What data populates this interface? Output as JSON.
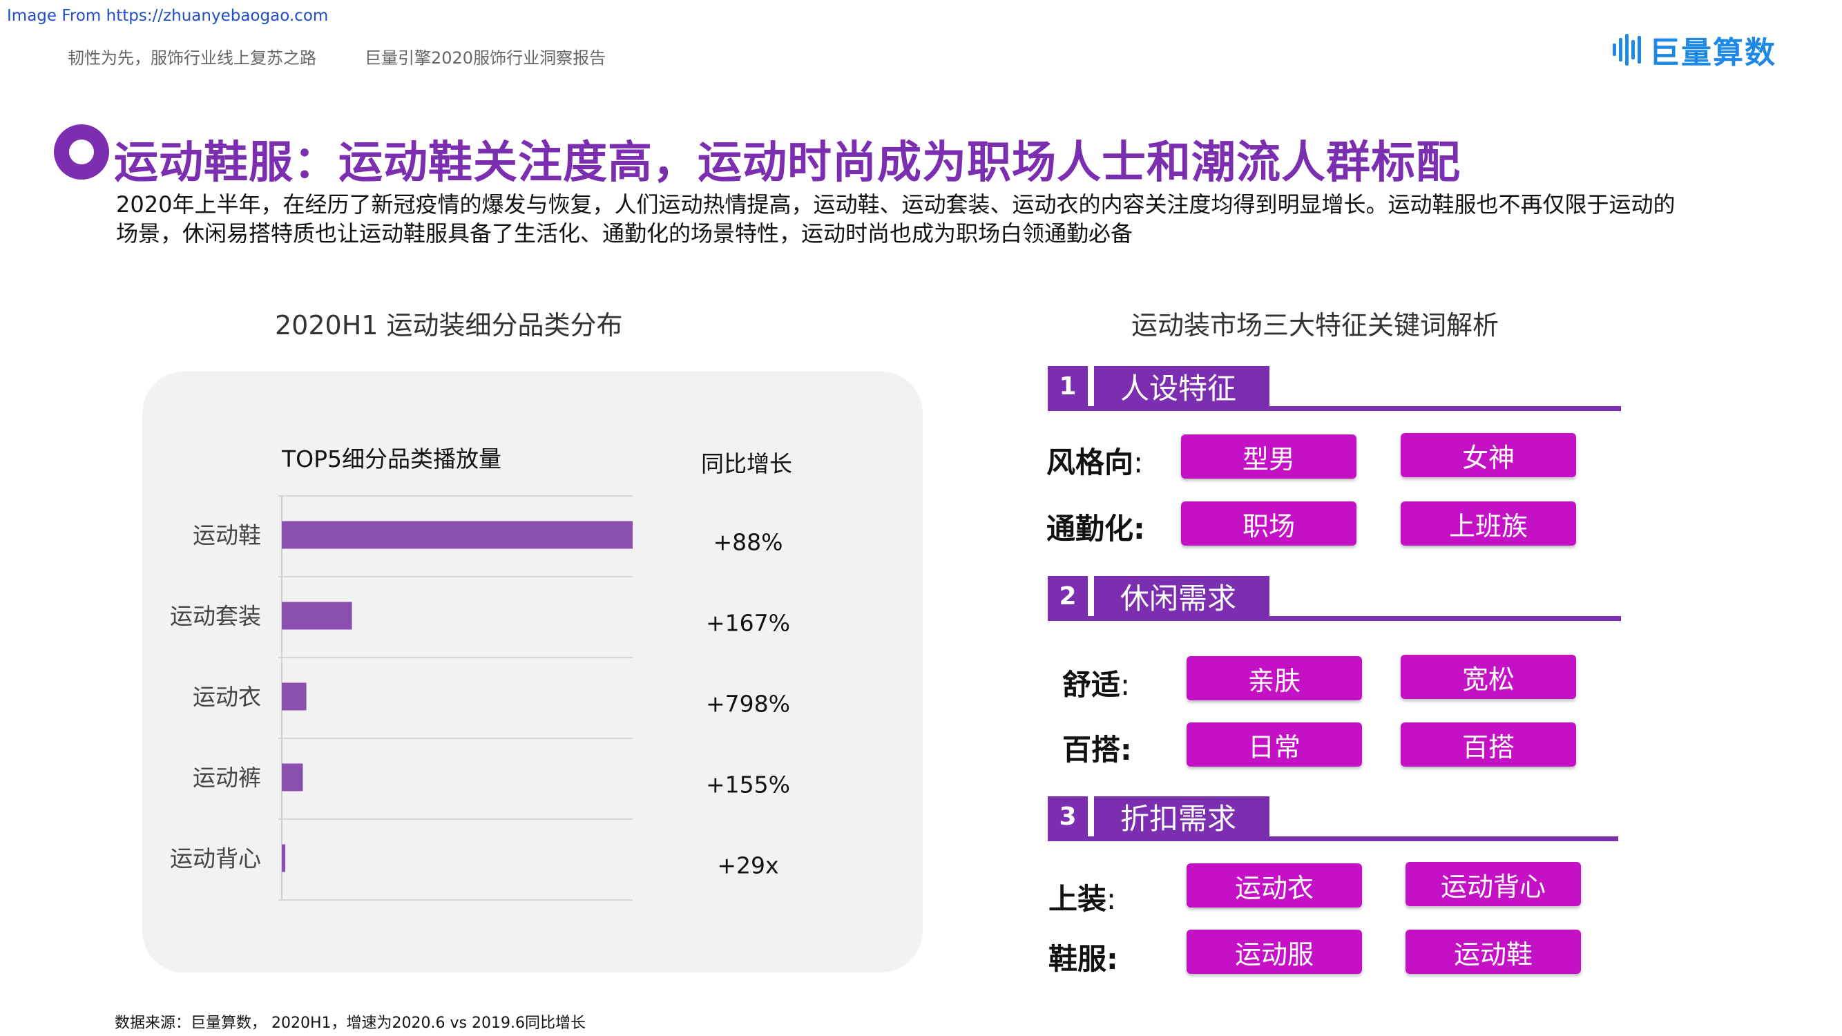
{
  "header": {
    "source_link": "Image From https://zhuanyebaogao.com",
    "subtitle_left": "韧性为先，服饰行业线上复苏之路",
    "subtitle_right": "巨量引擎2020服饰行业洞察报告",
    "logo_text": "巨量算数"
  },
  "slide": {
    "title": "运动鞋服：运动鞋关注度高，运动时尚成为职场人士和潮流人群标配",
    "description": "2020年上半年，在经历了新冠疫情的爆发与恢复，人们运动热情提高，运动鞋、运动套装、运动衣的内容关注度均得到明显增长。运动鞋服也不再仅限于运动的场景，休闲易搭特质也让运动鞋服具备了生活化、通勤化的场景特性，运动时尚也成为职场白领通勤必备"
  },
  "chart_data": {
    "type": "bar",
    "title": "2020H1 运动装细分品类分布",
    "xlabel": "TOP5细分品类播放量",
    "yoy_header": "同比增长",
    "categories": [
      "运动鞋",
      "运动套装",
      "运动衣",
      "运动裤",
      "运动背心"
    ],
    "values": [
      100,
      20,
      7,
      6,
      1
    ],
    "yoy": [
      "+88%",
      "+167%",
      "+798%",
      "+155%",
      "+29x"
    ],
    "xlim": [
      0,
      100
    ],
    "bar_color": "#8b4fb0"
  },
  "keywords": {
    "title": "运动装市场三大特征关键词解析",
    "sections": [
      {
        "number": "1",
        "label": "人设特征",
        "rows": [
          {
            "label": "风格向",
            "colon": ":",
            "tags": [
              "型男",
              "女神"
            ]
          },
          {
            "label": "通勤化:",
            "colon": "",
            "tags": [
              "职场",
              "上班族"
            ]
          }
        ]
      },
      {
        "number": "2",
        "label": "休闲需求",
        "rows": [
          {
            "label": "舒适",
            "colon": ":",
            "tags": [
              "亲肤",
              "宽松"
            ]
          },
          {
            "label": "百搭:",
            "colon": "",
            "tags": [
              "日常",
              "百搭"
            ]
          }
        ]
      },
      {
        "number": "3",
        "label": "折扣需求",
        "rows": [
          {
            "label": "上装",
            "colon": ":",
            "tags": [
              "运动衣",
              "运动背心"
            ]
          },
          {
            "label": "鞋服:",
            "colon": "",
            "tags": [
              "运动服",
              "运动鞋"
            ]
          }
        ]
      }
    ]
  },
  "footer": "数据来源：巨量算数， 2020H1，增速为2020.6 vs 2019.6同比增长",
  "colors": {
    "accent": "#7b2fb0",
    "tag": "#c511c5",
    "logo": "#1e88e5"
  }
}
